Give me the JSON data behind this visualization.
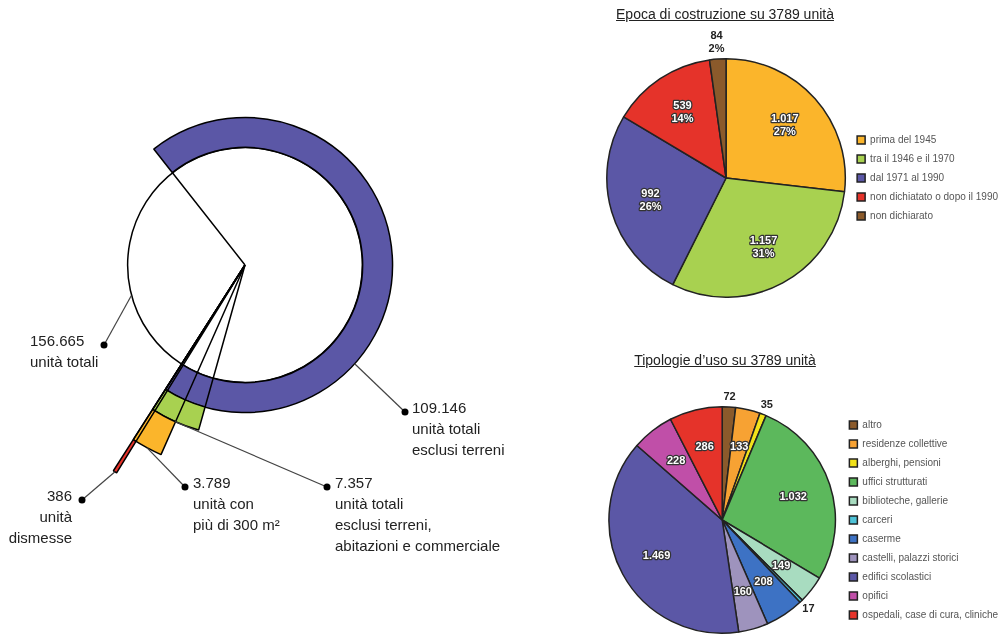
{
  "chart_data": [
    {
      "type": "other",
      "categories": [
        "unità totali",
        "unità totali\nesclusi terreni",
        "unità totali\nesclusi terreni,\nabitazioni e commerciale",
        "unità con\npiù di 300 m²",
        "unità\ndismesse"
      ],
      "values": [
        156665,
        109146,
        7357,
        3789,
        386
      ],
      "colors": [
        "#ffffff",
        "#5b57a6",
        "#a8d150",
        "#fbb52b",
        "#e5332a"
      ],
      "value_labels": [
        "156.665",
        "109.146",
        "7.357",
        "3.789",
        "386"
      ]
    },
    {
      "type": "pie",
      "title": "Epoca di costruzione su 3789 unità",
      "categories": [
        "prima del 1945",
        "tra il 1946 e il 1970",
        "dal 1971 al 1990",
        "non dichiatato o dopo il 1990",
        "non dichiarato"
      ],
      "values": [
        1017,
        1157,
        992,
        539,
        84
      ],
      "colors": [
        "#fbb52b",
        "#a8d150",
        "#5b57a6",
        "#e5332a",
        "#8b5a2b"
      ],
      "value_labels": [
        "1.017\n27%",
        "1.157\n31%",
        "992\n26%",
        "539\n14%",
        "84\n2%"
      ],
      "legend": "right"
    },
    {
      "type": "pie",
      "title": "Tipologie d’uso su 3789 unità",
      "categories": [
        "altro",
        "residenze collettive",
        "alberghi, pensioni",
        "uffici strutturati",
        "biblioteche, gallerie",
        "carceri",
        "caserme",
        "castelli, palazzi storici",
        "edifici scolastici",
        "opifici",
        "ospedali, case di cura, cliniche"
      ],
      "values": [
        72,
        133,
        35,
        1032,
        149,
        17,
        208,
        160,
        1469,
        228,
        286
      ],
      "colors": [
        "#8b5a2b",
        "#f7a233",
        "#f2e21a",
        "#5cb85c",
        "#a8dcc0",
        "#4fc3d8",
        "#3d72c4",
        "#9e93bd",
        "#5b57a6",
        "#c04fa8",
        "#e5332a"
      ],
      "value_labels": [
        "72",
        "133",
        "35",
        "1.032",
        "149",
        "17",
        "208",
        "160",
        "1.469",
        "228",
        "286"
      ],
      "legend": "right"
    }
  ]
}
